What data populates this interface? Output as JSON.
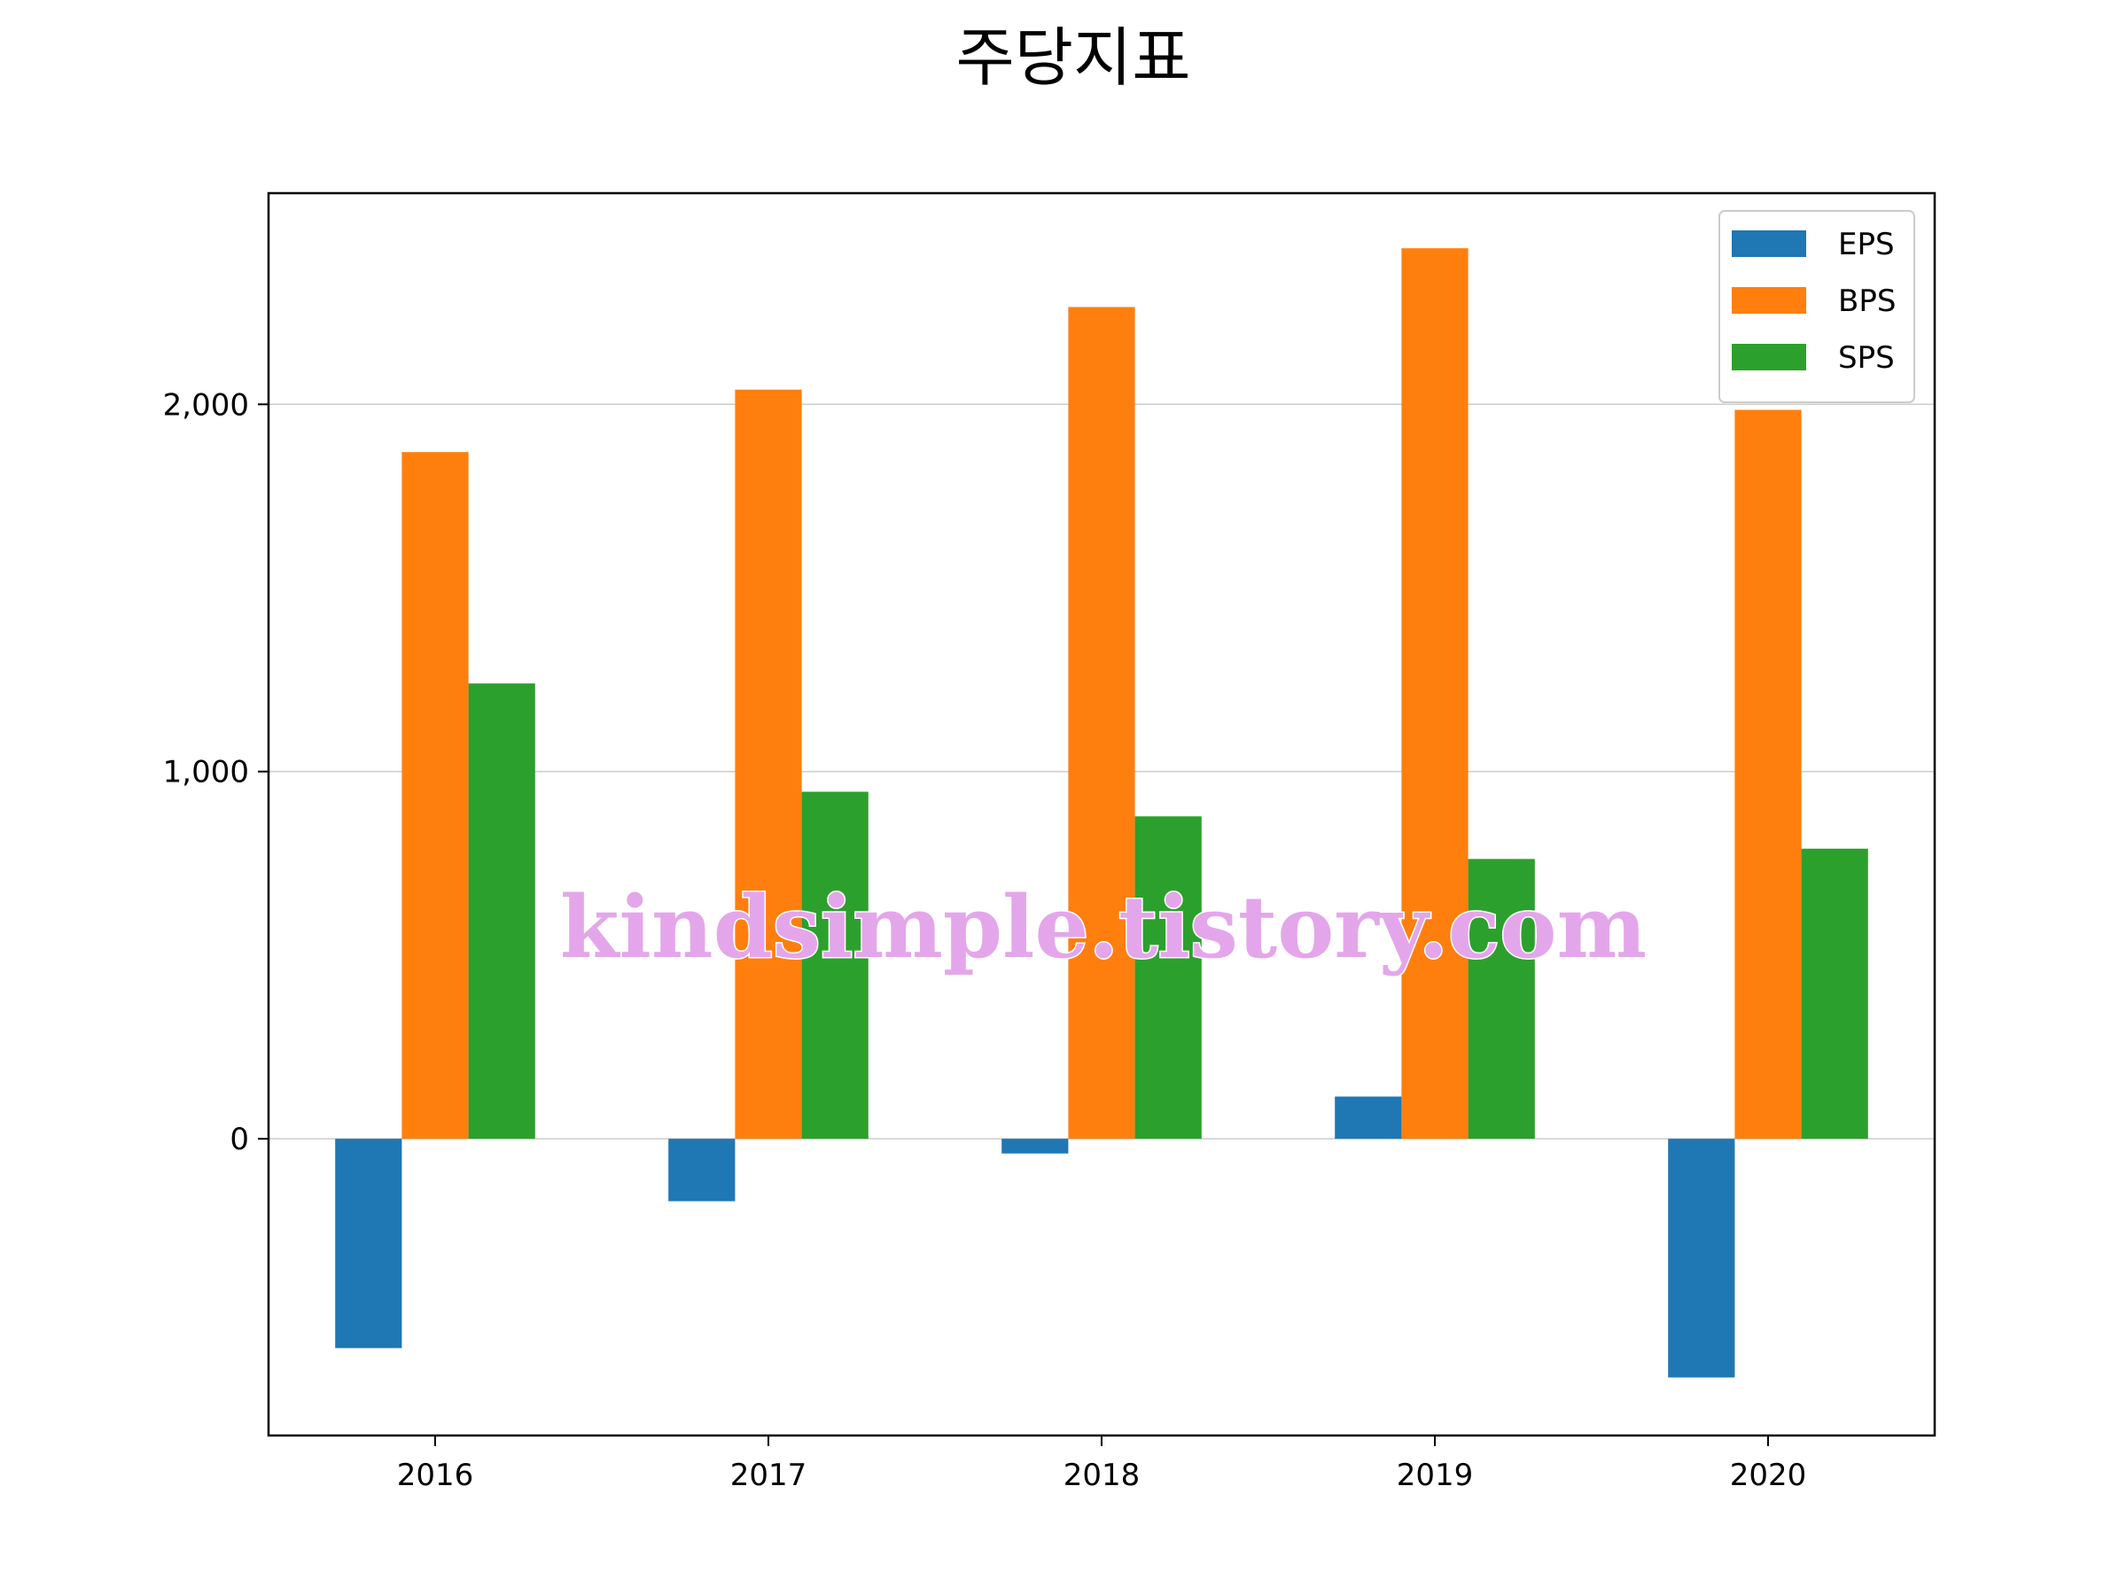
{
  "chart_data": {
    "type": "bar",
    "title": "주당지표",
    "xlabel": "",
    "ylabel": "",
    "categories": [
      "2016",
      "2017",
      "2018",
      "2019",
      "2020"
    ],
    "series": [
      {
        "name": "EPS",
        "color": "#1f77b4",
        "values": [
          -570,
          -170,
          -40,
          115,
          -650
        ]
      },
      {
        "name": "BPS",
        "color": "#ff7f0e",
        "values": [
          1870,
          2040,
          2265,
          2425,
          1985
        ]
      },
      {
        "name": "SPS",
        "color": "#2ca02c",
        "values": [
          1240,
          945,
          878,
          762,
          790
        ]
      }
    ],
    "ylim": [
      -808,
      2575
    ],
    "yticks": [
      0,
      1000,
      2000
    ],
    "ytick_labels": [
      "0",
      "1,000",
      "2,000"
    ],
    "grid": "horizontal",
    "legend_position": "top-right",
    "watermark": "kindsimple.tistory.com"
  }
}
